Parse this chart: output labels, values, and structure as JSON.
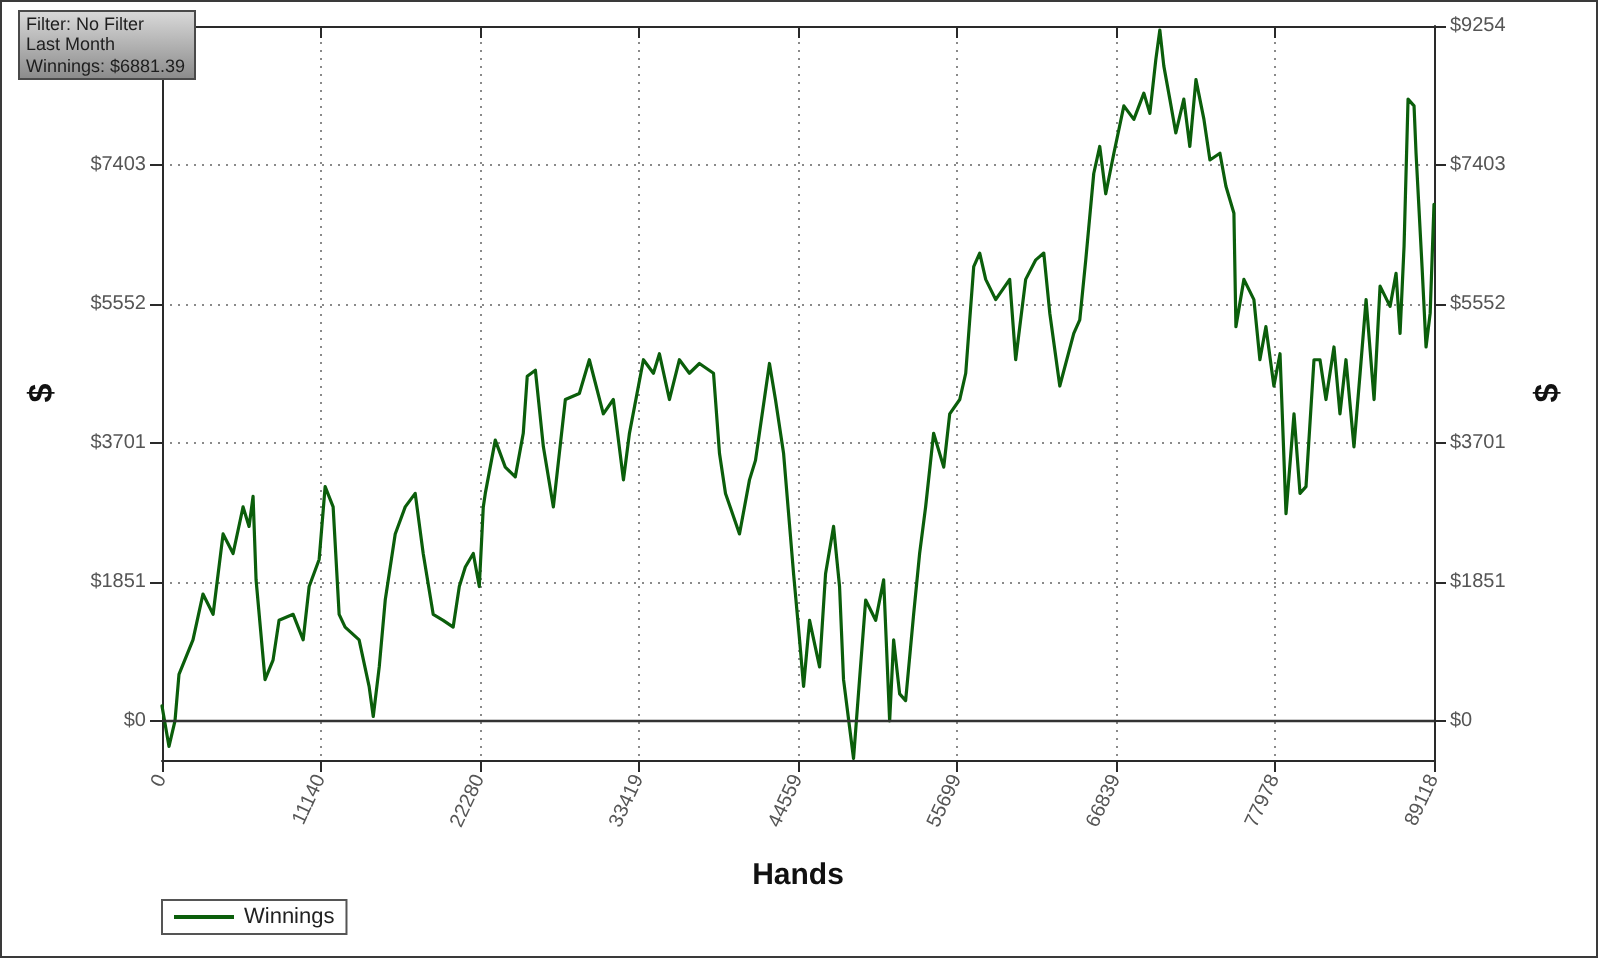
{
  "chart_data": {
    "type": "line",
    "xlabel": "Hands",
    "ylabel": "$",
    "y2label": "$",
    "annotations": [
      "Filter: No Filter",
      "Last Month",
      "Winnings: $6881.39"
    ],
    "x": [
      0,
      490,
      910,
      1190,
      2170,
      2870,
      3580,
      4280,
      4980,
      5680,
      6100,
      6380,
      6590,
      7220,
      7780,
      8200,
      9190,
      9890,
      10310,
      11010,
      11430,
      11990,
      12410,
      12830,
      13810,
      14510,
      14800,
      15220,
      15640,
      16340,
      17040,
      17740,
      18300,
      19000,
      19700,
      20400,
      20830,
      21250,
      21810,
      22230,
      22510,
      22650,
      23350,
      24050,
      24750,
      25310,
      25590,
      26160,
      26720,
      27420,
      28260,
      29240,
      29940,
      30920,
      31620,
      32330,
      32750,
      33730,
      34430,
      34850,
      35550,
      36250,
      36950,
      37650,
      38640,
      39060,
      39480,
      40460,
      41160,
      41580,
      42560,
      42980,
      43550,
      44250,
      44670,
      44950,
      45370,
      46070,
      46490,
      47050,
      47470,
      47750,
      48170,
      48450,
      48870,
      49300,
      50000,
      50560,
      50980,
      51260,
      51680,
      52100,
      52660,
      53080,
      53500,
      54060,
      54770,
      55190,
      55890,
      56310,
      56870,
      57290,
      57710,
      58410,
      59390,
      59810,
      60510,
      61220,
      61780,
      62200,
      62900,
      63880,
      64300,
      64720,
      65280,
      65700,
      66120,
      66690,
      67390,
      68090,
      68790,
      69210,
      69630,
      69910,
      70190,
      70610,
      71030,
      71590,
      72010,
      72440,
      73000,
      73420,
      74120,
      74540,
      75100,
      75240,
      75800,
      76500,
      76920,
      77340,
      77900,
      78330,
      78750,
      79310,
      79730,
      80150,
      80710,
      81130,
      81550,
      82110,
      82530,
      82950,
      83510,
      83940,
      84360,
      84920,
      85340,
      86040,
      86460,
      86740,
      87020,
      87300,
      87720,
      87860,
      88280,
      88560,
      88850,
      89118
    ],
    "series": [
      {
        "name": "Winnings",
        "color": "#0b5e0b",
        "values": [
          200,
          -340,
          0,
          620,
          1080,
          1690,
          1420,
          2490,
          2230,
          2850,
          2590,
          2990,
          1880,
          550,
          810,
          1340,
          1420,
          1080,
          1790,
          2150,
          3120,
          2850,
          1420,
          1250,
          1080,
          460,
          60,
          720,
          1610,
          2490,
          2850,
          3030,
          2230,
          1420,
          1340,
          1250,
          1790,
          2050,
          2230,
          1790,
          2850,
          3030,
          3740,
          3380,
          3250,
          3830,
          4590,
          4670,
          3650,
          2850,
          4280,
          4360,
          4810,
          4090,
          4280,
          3210,
          3830,
          4810,
          4630,
          4890,
          4280,
          4810,
          4630,
          4760,
          4630,
          3560,
          3030,
          2490,
          3210,
          3470,
          4760,
          4280,
          3560,
          1960,
          1080,
          460,
          1340,
          720,
          1960,
          2590,
          1790,
          550,
          -80,
          -500,
          550,
          1610,
          1340,
          1880,
          0,
          1080,
          360,
          270,
          1420,
          2230,
          2850,
          3830,
          3380,
          4090,
          4280,
          4630,
          6050,
          6230,
          5880,
          5610,
          5880,
          4810,
          5880,
          6140,
          6230,
          5430,
          4460,
          5160,
          5340,
          6140,
          7290,
          7650,
          7020,
          7560,
          8190,
          8010,
          8360,
          8090,
          8810,
          9200,
          8720,
          8280,
          7830,
          8280,
          7650,
          8540,
          8010,
          7470,
          7560,
          7120,
          6760,
          5250,
          5880,
          5610,
          4810,
          5250,
          4460,
          4890,
          2760,
          4090,
          3030,
          3120,
          4810,
          4810,
          4280,
          4980,
          4090,
          4810,
          3650,
          4630,
          5610,
          4280,
          5790,
          5520,
          5960,
          5160,
          6320,
          8280,
          8190,
          7560,
          6050,
          4980,
          5430,
          6880
        ]
      }
    ],
    "xlim": [
      0,
      89118
    ],
    "xticks": [
      0,
      11140,
      22280,
      33419,
      44559,
      55699,
      66839,
      77978,
      89118
    ],
    "ylim": [
      -520,
      9254
    ],
    "yticks": [
      {
        "value": 0,
        "label": "$0"
      },
      {
        "value": 1851,
        "label": "$1851"
      },
      {
        "value": 3701,
        "label": "$3701"
      },
      {
        "value": 5552,
        "label": "$5552"
      },
      {
        "value": 7403,
        "label": "$7403"
      },
      {
        "value": 9254,
        "label": null
      }
    ],
    "y2lim": [
      -520,
      9254
    ],
    "y2ticks": [
      {
        "value": 0,
        "label": "$0"
      },
      {
        "value": 1851,
        "label": "$1851"
      },
      {
        "value": 3701,
        "label": "$3701"
      },
      {
        "value": 5552,
        "label": "$5552"
      },
      {
        "value": 7403,
        "label": "$7403"
      },
      {
        "value": 9254,
        "label": "$9254"
      }
    ],
    "ref_lines": [
      {
        "axis": "y",
        "value": 0,
        "color": "#333333"
      }
    ],
    "grid": true,
    "legend": "bottom left"
  }
}
